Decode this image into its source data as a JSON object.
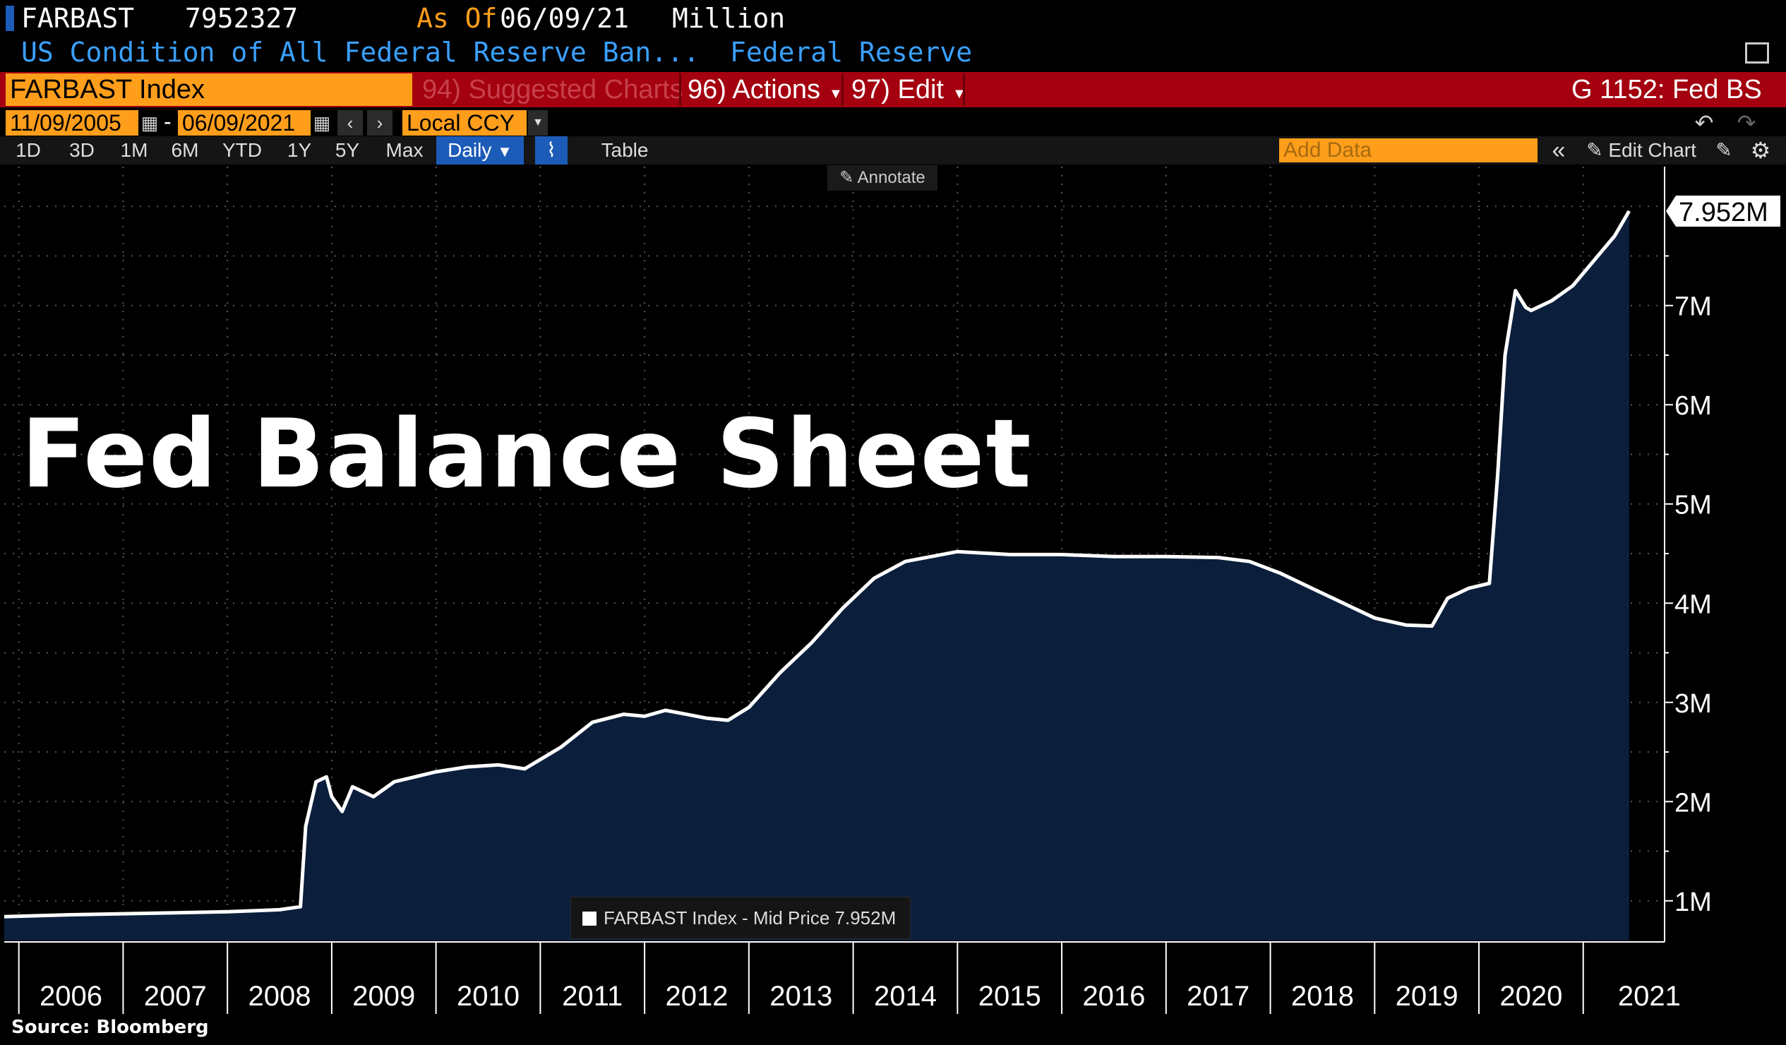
{
  "header": {
    "ticker": "FARBAST",
    "last_value": "7952327",
    "as_of_label": "As Of",
    "as_of_date": "06/09/21",
    "units": "Million",
    "description": "US Condition of All Federal Reserve Ban...",
    "source_org": "Federal Reserve"
  },
  "command_bar": {
    "security": "FARBAST Index",
    "suggested": "94) Suggested Charts",
    "actions": "96) Actions",
    "edit": "97) Edit",
    "chart_id": "G 1152: Fed BS"
  },
  "date_range": {
    "start": "11/09/2005",
    "dash": "-",
    "end": "06/09/2021",
    "currency": "Local CCY"
  },
  "toolbar": {
    "periods": [
      "1D",
      "3D",
      "1M",
      "6M",
      "YTD",
      "1Y",
      "5Y",
      "Max"
    ],
    "frequency": "Daily",
    "table": "Table",
    "add_data_placeholder": "Add Data",
    "edit_chart": "Edit Chart",
    "annotate": "Annotate"
  },
  "overlay_title": "Fed Balance Sheet",
  "last_value_label": "7.952M",
  "source": "Source: Bloomberg",
  "colors": {
    "background": "#000000",
    "area_fill": "#0b1f3d",
    "line": "#ffffff",
    "accent_orange": "#ff9e1b",
    "bar_red": "#a4000f",
    "header_blue": "#3aa0ff",
    "header_orange": "#ff9e1b"
  },
  "chart_data": {
    "type": "area",
    "title": "",
    "xlabel": "",
    "ylabel": "",
    "ylim": [
      0.6,
      8.4
    ],
    "yticks": [
      1,
      2,
      3,
      4,
      5,
      6,
      7
    ],
    "ytick_labels": [
      "1M",
      "2M",
      "3M",
      "4M",
      "5M",
      "6M",
      "7M"
    ],
    "xticks": [
      "2006",
      "2007",
      "2008",
      "2009",
      "2010",
      "2011",
      "2012",
      "2013",
      "2014",
      "2015",
      "2016",
      "2017",
      "2018",
      "2019",
      "2020",
      "2021"
    ],
    "grid": true,
    "legend": "bottom-center",
    "legend_label": "FARBAST Index - Mid Price 7.952M",
    "series": [
      {
        "name": "FARBAST Index - Mid Price",
        "unit": "Million (USD millions, axis in trillions shown as M)",
        "x": [
          2005.86,
          2006.5,
          2007.0,
          2007.5,
          2008.0,
          2008.5,
          2008.7,
          2008.75,
          2008.85,
          2008.95,
          2009.0,
          2009.1,
          2009.2,
          2009.4,
          2009.6,
          2009.8,
          2010.0,
          2010.3,
          2010.6,
          2010.85,
          2011.2,
          2011.5,
          2011.8,
          2012.0,
          2012.2,
          2012.4,
          2012.6,
          2012.8,
          2013.0,
          2013.3,
          2013.6,
          2013.9,
          2014.2,
          2014.5,
          2014.8,
          2015.0,
          2015.5,
          2016.0,
          2016.5,
          2017.0,
          2017.5,
          2017.8,
          2018.1,
          2018.4,
          2018.7,
          2019.0,
          2019.3,
          2019.55,
          2019.7,
          2019.9,
          2020.1,
          2020.18,
          2020.25,
          2020.35,
          2020.45,
          2020.5,
          2020.7,
          2020.9,
          2021.1,
          2021.3,
          2021.44
        ],
        "y": [
          0.84,
          0.86,
          0.87,
          0.88,
          0.89,
          0.91,
          0.94,
          1.75,
          2.2,
          2.25,
          2.05,
          1.9,
          2.15,
          2.05,
          2.2,
          2.25,
          2.3,
          2.35,
          2.37,
          2.33,
          2.55,
          2.8,
          2.88,
          2.86,
          2.92,
          2.88,
          2.84,
          2.82,
          2.95,
          3.3,
          3.6,
          3.95,
          4.25,
          4.42,
          4.48,
          4.52,
          4.49,
          4.49,
          4.47,
          4.47,
          4.46,
          4.42,
          4.3,
          4.15,
          4.0,
          3.85,
          3.78,
          3.77,
          4.05,
          4.15,
          4.2,
          5.3,
          6.5,
          7.15,
          6.98,
          6.95,
          7.05,
          7.2,
          7.45,
          7.7,
          7.952
        ]
      }
    ]
  }
}
